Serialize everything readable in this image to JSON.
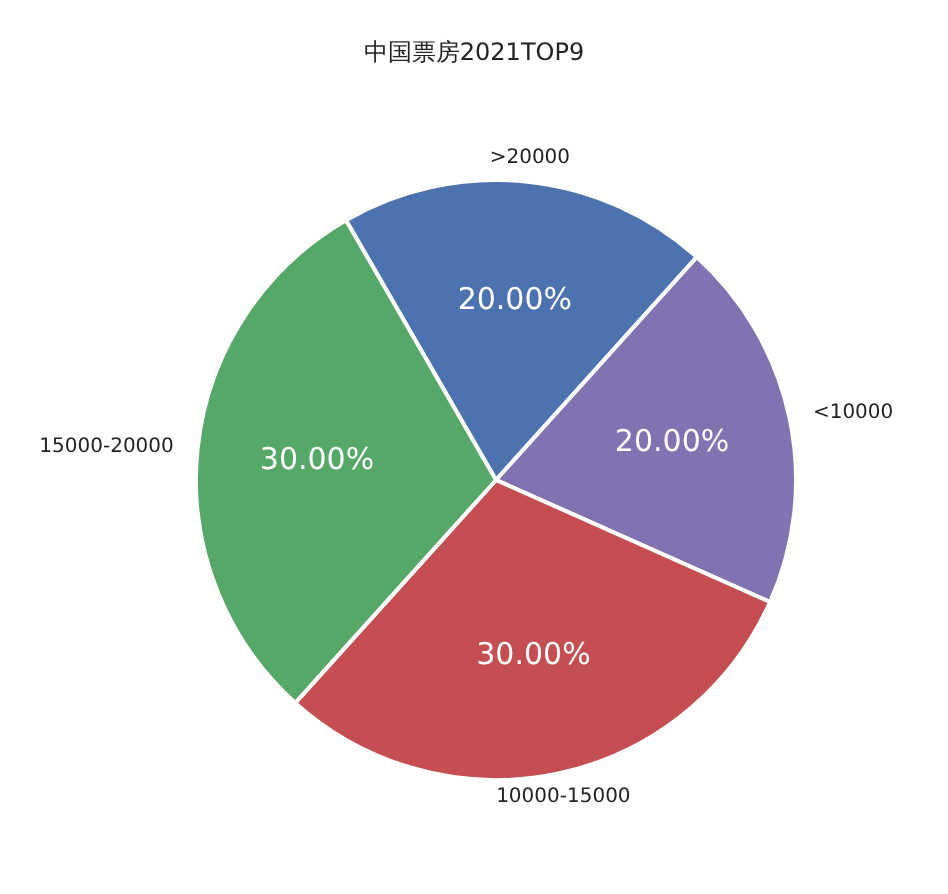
{
  "chart_data": {
    "type": "pie",
    "title": "中国票房2021TOP9",
    "categories": [
      ">20000",
      "<10000",
      "10000-15000",
      "15000-20000"
    ],
    "values": [
      20,
      20,
      30,
      30
    ],
    "value_labels": [
      "20.00%",
      "20.00%",
      "30.00%",
      "30.00%"
    ],
    "colors": [
      "#4c72b0",
      "#8172b2",
      "#c44e52",
      "#55a868"
    ],
    "legend": false
  }
}
